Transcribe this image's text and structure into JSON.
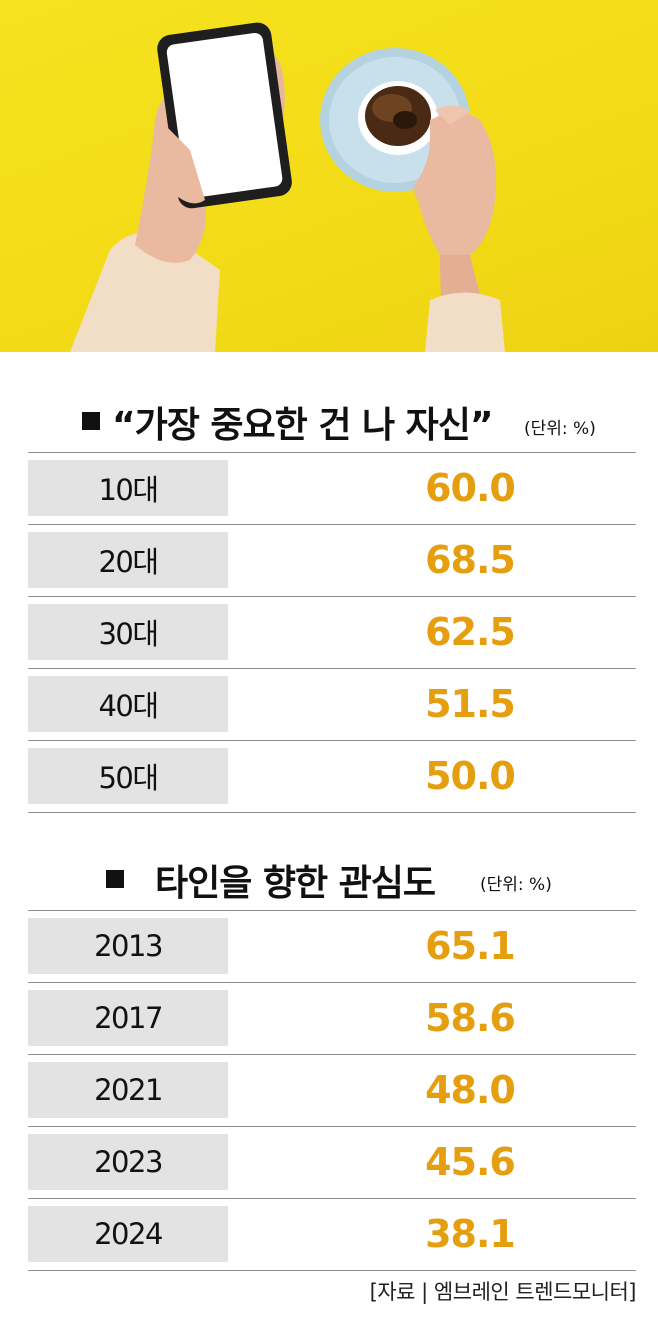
{
  "chart_data": [
    {
      "type": "table",
      "title": "“가장 중요한 건 나 자신”",
      "unit": "(단위: %)",
      "categories": [
        "10대",
        "20대",
        "30대",
        "40대",
        "50대"
      ],
      "values": [
        "60.0",
        "68.5",
        "62.5",
        "51.5",
        "50.0"
      ]
    },
    {
      "type": "table",
      "title": "타인을 향한 관심도",
      "unit": "(단위: %)",
      "categories": [
        "2013",
        "2017",
        "2021",
        "2023",
        "2024"
      ],
      "values": [
        "65.1",
        "58.6",
        "48.0",
        "45.6",
        "38.1"
      ]
    }
  ],
  "source": "[자료 | 엠브레인 트렌드모니터]",
  "colors": {
    "background_photo": "#f3dc17",
    "value_text": "#e59e0e",
    "label_box": "#e3e3e3",
    "rule": "#8f8f8f"
  },
  "illustration": {
    "subjects": [
      "hand-holding-smartphone-icon",
      "coffee-cup-icon"
    ]
  }
}
